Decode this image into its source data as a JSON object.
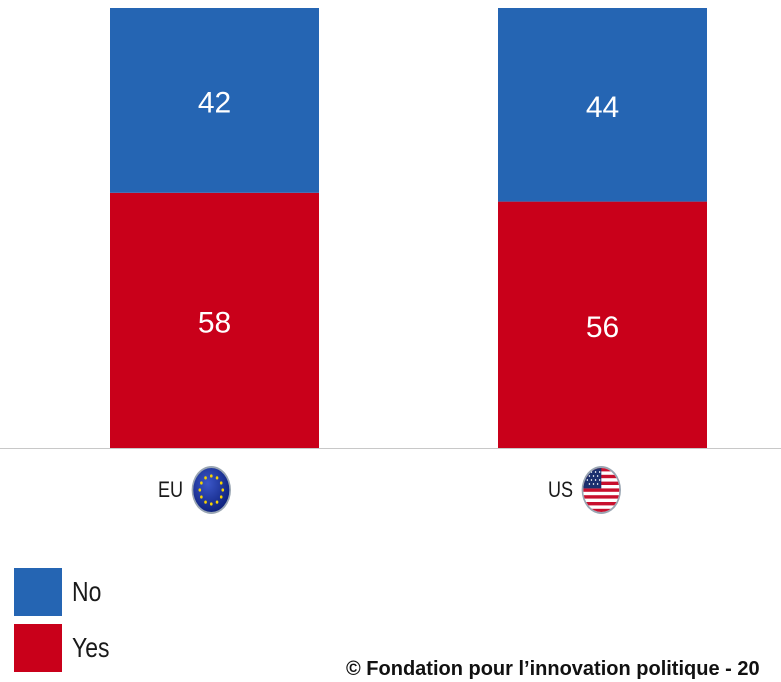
{
  "chart_data": {
    "type": "bar",
    "stacked": true,
    "percent": true,
    "categories": [
      "EU",
      "US"
    ],
    "series": [
      {
        "name": "Yes",
        "color": "#c9001a",
        "values": [
          58,
          56
        ]
      },
      {
        "name": "No",
        "color": "#2565b3",
        "values": [
          42,
          44
        ]
      }
    ],
    "ylim": [
      0,
      100
    ],
    "grid": false,
    "legend_position": "bottom-left",
    "data_labels": true
  },
  "categories_display": [
    {
      "label": "EU",
      "icon": "eu-flag-icon"
    },
    {
      "label": "US",
      "icon": "us-flag-icon"
    }
  ],
  "legend": [
    {
      "label": "No",
      "color": "#2565b3"
    },
    {
      "label": "Yes",
      "color": "#c9001a"
    }
  ],
  "credit": "© Fondation pour l’innovation politique - 20"
}
